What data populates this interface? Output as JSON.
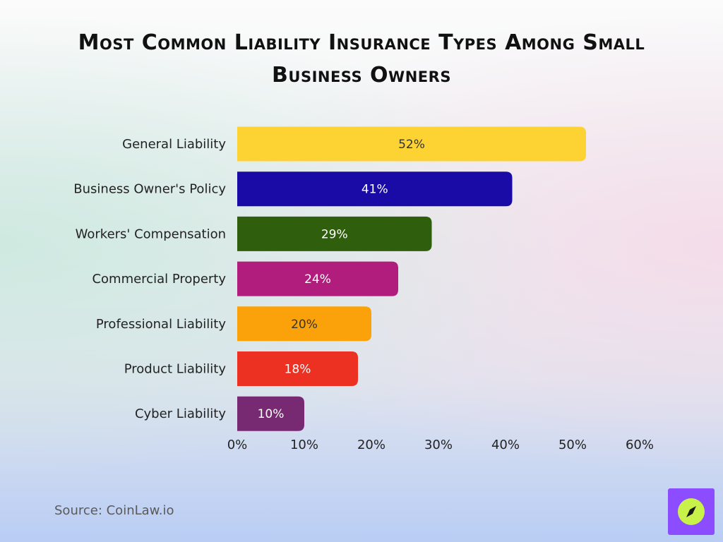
{
  "header": {
    "title": "Most Common Liability Insurance Types Among Small Business Owners"
  },
  "source": "Source: CoinLaw.io",
  "logo": {
    "icon": "compass-icon",
    "bg_color": "#8b4dff",
    "circle_color": "#c8f24a"
  },
  "chart_data": {
    "type": "bar",
    "orientation": "horizontal",
    "title": "Most Common Liability Insurance Types Among Small Business Owners",
    "xlabel": "",
    "ylabel": "",
    "categories": [
      "General Liability",
      "Business Owner's Policy",
      "Workers' Compensation",
      "Commercial Property",
      "Professional Liability",
      "Product Liability",
      "Cyber Liability"
    ],
    "values": [
      52,
      41,
      29,
      24,
      20,
      18,
      10
    ],
    "data_labels": [
      "52%",
      "41%",
      "29%",
      "24%",
      "20%",
      "18%",
      "10%"
    ],
    "colors": [
      "#fdd334",
      "#1a0aa6",
      "#2f5e0c",
      "#b01d7c",
      "#fba20a",
      "#ec3122",
      "#772a72"
    ],
    "label_colors": [
      "#333333",
      "#ffffff",
      "#ffffff",
      "#ffffff",
      "#333333",
      "#ffffff",
      "#ffffff"
    ],
    "xlim": [
      0,
      60
    ],
    "xticks": [
      0,
      10,
      20,
      30,
      40,
      50,
      60
    ],
    "xtick_labels": [
      "0%",
      "10%",
      "20%",
      "30%",
      "40%",
      "50%",
      "60%"
    ],
    "grid": false,
    "legend": "none"
  }
}
